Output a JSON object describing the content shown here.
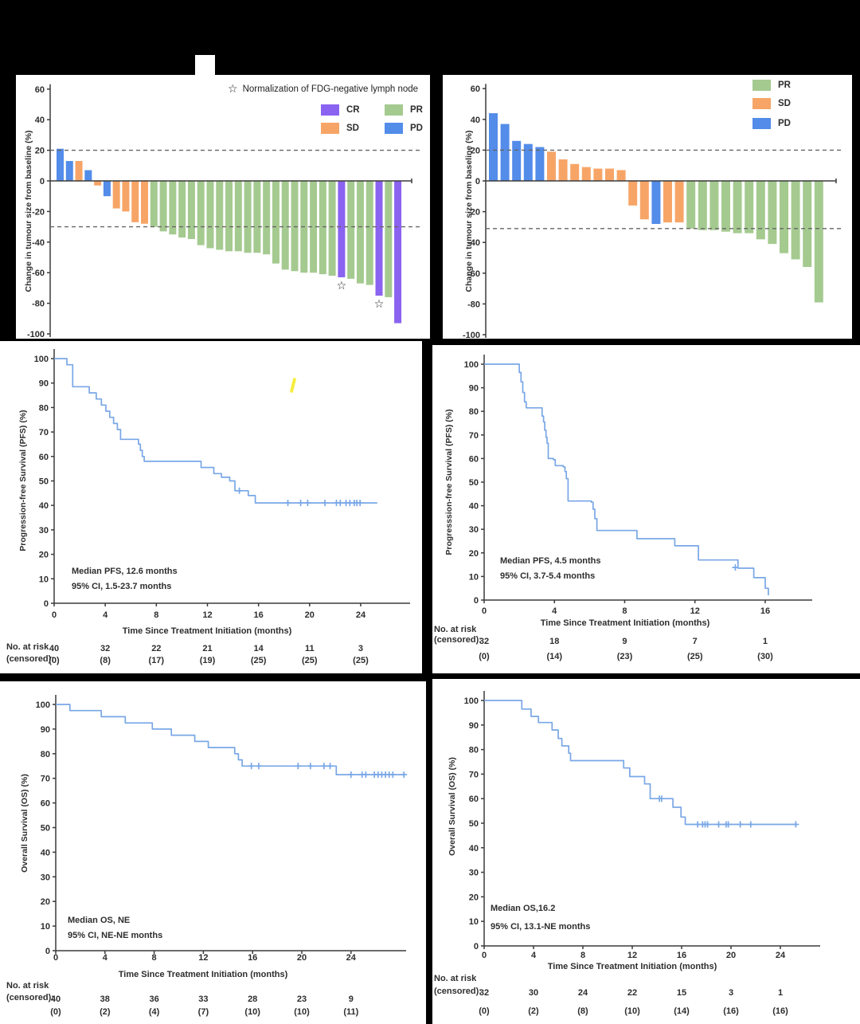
{
  "page": {
    "background": "#000000",
    "panel_background": "#ffffff"
  },
  "colors": {
    "cr": "#8a63f0",
    "sd": "#f7a567",
    "pr": "#a5ca90",
    "pd": "#538ce9",
    "km_line": "#79a7e6",
    "axis": "#3b3b3b",
    "dashed_line": "#666666",
    "text": "#2d2d2d",
    "artifact_yellow": "#f5ee3e"
  },
  "chart_data": [
    {
      "name": "waterfall-best-response-left",
      "type": "bar",
      "ylabel": "Change in tumour size from baseline (%)",
      "ylim": [
        -100,
        60
      ],
      "yticks": [
        60,
        40,
        20,
        0,
        -20,
        -40,
        -60,
        -80,
        -100
      ],
      "reference_lines": [
        20,
        -30
      ],
      "star_note": "Normalization of FDG-negative lymph node",
      "legend": [
        {
          "label": "CR",
          "key": "cr"
        },
        {
          "label": "SD",
          "key": "sd"
        },
        {
          "label": "PR",
          "key": "pr"
        },
        {
          "label": "PD",
          "key": "pd"
        }
      ],
      "bars": [
        {
          "value": 21,
          "response": "pd"
        },
        {
          "value": 13,
          "response": "pd"
        },
        {
          "value": 13,
          "response": "sd"
        },
        {
          "value": 7,
          "response": "pd"
        },
        {
          "value": -3,
          "response": "sd"
        },
        {
          "value": -10,
          "response": "pd"
        },
        {
          "value": -18,
          "response": "sd"
        },
        {
          "value": -20,
          "response": "sd"
        },
        {
          "value": -27,
          "response": "sd"
        },
        {
          "value": -28,
          "response": "sd"
        },
        {
          "value": -30,
          "response": "pr"
        },
        {
          "value": -33,
          "response": "pr"
        },
        {
          "value": -35,
          "response": "pr"
        },
        {
          "value": -37,
          "response": "pr"
        },
        {
          "value": -38,
          "response": "pr"
        },
        {
          "value": -42,
          "response": "pr"
        },
        {
          "value": -44,
          "response": "pr"
        },
        {
          "value": -45,
          "response": "pr"
        },
        {
          "value": -46,
          "response": "pr"
        },
        {
          "value": -46,
          "response": "pr"
        },
        {
          "value": -47,
          "response": "pr"
        },
        {
          "value": -47,
          "response": "pr"
        },
        {
          "value": -48,
          "response": "pr"
        },
        {
          "value": -54,
          "response": "pr"
        },
        {
          "value": -58,
          "response": "pr"
        },
        {
          "value": -59,
          "response": "pr"
        },
        {
          "value": -60,
          "response": "pr"
        },
        {
          "value": -60,
          "response": "pr"
        },
        {
          "value": -61,
          "response": "pr"
        },
        {
          "value": -62,
          "response": "pr"
        },
        {
          "value": -63,
          "response": "cr",
          "star": true
        },
        {
          "value": -64,
          "response": "pr"
        },
        {
          "value": -67,
          "response": "pr"
        },
        {
          "value": -68,
          "response": "pr"
        },
        {
          "value": -75,
          "response": "cr",
          "star": true
        },
        {
          "value": -76,
          "response": "pr"
        },
        {
          "value": -93,
          "response": "cr"
        }
      ]
    },
    {
      "name": "waterfall-best-response-right",
      "type": "bar",
      "ylabel": "Change in tumour size from baseline (%)",
      "ylim": [
        -100,
        60
      ],
      "yticks": [
        60,
        40,
        20,
        0,
        -20,
        -40,
        -60,
        -80,
        -100
      ],
      "reference_lines": [
        20,
        -31
      ],
      "legend": [
        {
          "label": "PR",
          "key": "pr"
        },
        {
          "label": "SD",
          "key": "sd"
        },
        {
          "label": "PD",
          "key": "pd"
        }
      ],
      "bars": [
        {
          "value": 44,
          "response": "pd"
        },
        {
          "value": 37,
          "response": "pd"
        },
        {
          "value": 26,
          "response": "pd"
        },
        {
          "value": 24,
          "response": "pd"
        },
        {
          "value": 22,
          "response": "pd"
        },
        {
          "value": 19,
          "response": "sd"
        },
        {
          "value": 14,
          "response": "sd"
        },
        {
          "value": 11,
          "response": "sd"
        },
        {
          "value": 9,
          "response": "sd"
        },
        {
          "value": 8,
          "response": "sd"
        },
        {
          "value": 8,
          "response": "sd"
        },
        {
          "value": 7,
          "response": "sd"
        },
        {
          "value": -16,
          "response": "sd"
        },
        {
          "value": -25,
          "response": "sd"
        },
        {
          "value": -28,
          "response": "pd"
        },
        {
          "value": -27,
          "response": "sd"
        },
        {
          "value": -27,
          "response": "sd"
        },
        {
          "value": -31,
          "response": "pr"
        },
        {
          "value": -32,
          "response": "pr"
        },
        {
          "value": -32,
          "response": "pr"
        },
        {
          "value": -33,
          "response": "pr"
        },
        {
          "value": -34,
          "response": "pr"
        },
        {
          "value": -34,
          "response": "pr"
        },
        {
          "value": -38,
          "response": "pr"
        },
        {
          "value": -41,
          "response": "pr"
        },
        {
          "value": -47,
          "response": "pr"
        },
        {
          "value": -51,
          "response": "pr"
        },
        {
          "value": -56,
          "response": "pr"
        },
        {
          "value": -79,
          "response": "pr"
        }
      ]
    },
    {
      "name": "km-pfs-left",
      "type": "line",
      "ylabel": "Progression-free Survival (PFS) (%)",
      "xlabel": "Time Since Treatment Initiation (months)",
      "median_label": "Median PFS, 12.6 months",
      "ci_label": "95% CI, 1.5-23.7 months",
      "risk_header": "No. at risk",
      "risk_header2": "(censored):",
      "ylim": [
        0,
        100
      ],
      "xticks": [
        0,
        4,
        8,
        12,
        16,
        20,
        24
      ],
      "at_risk": [
        40,
        32,
        22,
        21,
        14,
        11,
        3
      ],
      "censored_counts": [
        "(0)",
        "(8)",
        "(17)",
        "(19)",
        "(25)",
        "(25)",
        "(25)"
      ],
      "steps": [
        [
          0,
          100
        ],
        [
          1.0,
          97.5
        ],
        [
          1.45,
          88.5
        ],
        [
          2.75,
          86
        ],
        [
          3.3,
          83.5
        ],
        [
          3.7,
          81
        ],
        [
          4.05,
          78.5
        ],
        [
          4.35,
          76
        ],
        [
          4.65,
          73.5
        ],
        [
          4.95,
          71
        ],
        [
          5.2,
          67
        ],
        [
          6.6,
          65
        ],
        [
          6.75,
          62.5
        ],
        [
          6.9,
          60
        ],
        [
          7.05,
          58
        ],
        [
          11.5,
          55.5
        ],
        [
          12.5,
          53
        ],
        [
          13.1,
          51.5
        ],
        [
          13.75,
          50
        ],
        [
          14.15,
          46
        ],
        [
          15.2,
          44
        ],
        [
          15.75,
          41
        ],
        [
          25.3,
          41
        ]
      ],
      "censor_marks": [
        [
          14.5,
          46
        ],
        [
          18.3,
          41
        ],
        [
          19.3,
          41
        ],
        [
          19.85,
          41
        ],
        [
          21.2,
          41
        ],
        [
          22.1,
          41
        ],
        [
          22.4,
          41
        ],
        [
          22.85,
          41
        ],
        [
          23.15,
          41
        ],
        [
          23.5,
          41
        ],
        [
          23.7,
          41
        ],
        [
          23.95,
          41
        ]
      ]
    },
    {
      "name": "km-pfs-right",
      "type": "line",
      "ylabel": "Progresssion-free Survival (PFS) (%)",
      "xlabel": "Time Since Treatment Initiation (months)",
      "median_label": "Median PFS, 4.5 months",
      "ci_label": "95% CI, 3.7-5.4 months",
      "risk_header": "No. at risk",
      "risk_header2": "(censored):",
      "ylim": [
        0,
        100
      ],
      "xticks": [
        0,
        4,
        8,
        12,
        16
      ],
      "at_risk": [
        32,
        18,
        9,
        7,
        1
      ],
      "censored_counts": [
        "(0)",
        "(14)",
        "(23)",
        "(25)",
        "(30)"
      ],
      "steps": [
        [
          0,
          100
        ],
        [
          2.0,
          96.5
        ],
        [
          2.1,
          92.5
        ],
        [
          2.2,
          88
        ],
        [
          2.3,
          84
        ],
        [
          2.4,
          81.5
        ],
        [
          3.3,
          78
        ],
        [
          3.38,
          75.5
        ],
        [
          3.45,
          72
        ],
        [
          3.52,
          69
        ],
        [
          3.58,
          66.5
        ],
        [
          3.65,
          60
        ],
        [
          3.95,
          59.5
        ],
        [
          4.05,
          57
        ],
        [
          4.5,
          56.5
        ],
        [
          4.6,
          54.5
        ],
        [
          4.68,
          51.5
        ],
        [
          4.78,
          42
        ],
        [
          6.1,
          41.5
        ],
        [
          6.2,
          38.5
        ],
        [
          6.3,
          34.5
        ],
        [
          6.42,
          29.5
        ],
        [
          8.7,
          26
        ],
        [
          10.85,
          23
        ],
        [
          12.2,
          17
        ],
        [
          14.45,
          13.5
        ],
        [
          15.35,
          9.5
        ],
        [
          16.0,
          5
        ],
        [
          16.18,
          2
        ]
      ],
      "censor_marks": [
        [
          14.3,
          13.8
        ]
      ]
    },
    {
      "name": "km-os-left",
      "type": "line",
      "ylabel": "Overall Survival (OS) (%)",
      "xlabel": "Time Since Treatment Initiation (months)",
      "median_label": "Median OS, NE",
      "ci_label": "95% CI, NE-NE months",
      "risk_header": "No. at risk",
      "risk_header2": "(censored):",
      "ylim": [
        0,
        100
      ],
      "xticks": [
        0,
        4,
        8,
        12,
        16,
        20,
        24
      ],
      "at_risk": [
        40,
        38,
        36,
        33,
        28,
        23,
        9
      ],
      "censored_counts": [
        "(0)",
        "(2)",
        "(4)",
        "(7)",
        "(10)",
        "(10)",
        "(11)"
      ],
      "steps": [
        [
          0,
          100
        ],
        [
          1.15,
          97.5
        ],
        [
          3.7,
          95
        ],
        [
          5.65,
          92.5
        ],
        [
          7.85,
          90
        ],
        [
          9.4,
          87.5
        ],
        [
          11.3,
          85
        ],
        [
          12.4,
          82.5
        ],
        [
          14.55,
          80
        ],
        [
          14.85,
          77.5
        ],
        [
          15.15,
          75
        ],
        [
          22.8,
          71.5
        ],
        [
          28.4,
          71.5
        ]
      ],
      "censor_marks": [
        [
          15.9,
          75
        ],
        [
          16.5,
          75
        ],
        [
          19.7,
          75
        ],
        [
          20.7,
          75
        ],
        [
          21.8,
          75
        ],
        [
          22.3,
          75
        ],
        [
          24.0,
          71.5
        ],
        [
          24.9,
          71.5
        ],
        [
          25.2,
          71.5
        ],
        [
          25.9,
          71.5
        ],
        [
          26.2,
          71.5
        ],
        [
          26.5,
          71.5
        ],
        [
          26.8,
          71.5
        ],
        [
          27.1,
          71.5
        ],
        [
          27.4,
          71.5
        ],
        [
          28.3,
          71.5
        ]
      ]
    },
    {
      "name": "km-os-right",
      "type": "line",
      "ylabel": "Overall Survival (OS) (%)",
      "xlabel": "Time Since Treatment Initiation (months)",
      "median_label": "Median OS,16.2",
      "ci_label": "95% CI, 13.1-NE months",
      "risk_header": "No. at risk",
      "risk_header2": "(censored):",
      "ylim": [
        0,
        100
      ],
      "xticks": [
        0,
        4,
        8,
        12,
        16,
        20,
        24
      ],
      "at_risk": [
        32,
        30,
        24,
        22,
        15,
        3,
        1
      ],
      "censored_counts": [
        "(0)",
        "(2)",
        "(8)",
        "(10)",
        "(14)",
        "(16)",
        "(16)"
      ],
      "steps": [
        [
          0,
          100
        ],
        [
          3.05,
          96.5
        ],
        [
          3.8,
          93.5
        ],
        [
          4.4,
          91
        ],
        [
          5.5,
          88
        ],
        [
          6.0,
          84.5
        ],
        [
          6.3,
          81.5
        ],
        [
          6.85,
          78.5
        ],
        [
          7.0,
          75.5
        ],
        [
          11.3,
          72.5
        ],
        [
          11.8,
          69
        ],
        [
          13.0,
          66
        ],
        [
          13.45,
          60
        ],
        [
          15.3,
          56.5
        ],
        [
          15.95,
          52.5
        ],
        [
          16.3,
          49.5
        ],
        [
          25.35,
          49.5
        ]
      ],
      "censor_marks": [
        [
          14.2,
          60
        ],
        [
          14.38,
          60
        ],
        [
          17.3,
          49.5
        ],
        [
          17.7,
          49.5
        ],
        [
          17.9,
          49.5
        ],
        [
          18.1,
          49.5
        ],
        [
          19.0,
          49.5
        ],
        [
          19.6,
          49.5
        ],
        [
          19.78,
          49.5
        ],
        [
          20.75,
          49.5
        ],
        [
          21.6,
          49.5
        ],
        [
          25.25,
          49.5
        ]
      ]
    }
  ]
}
